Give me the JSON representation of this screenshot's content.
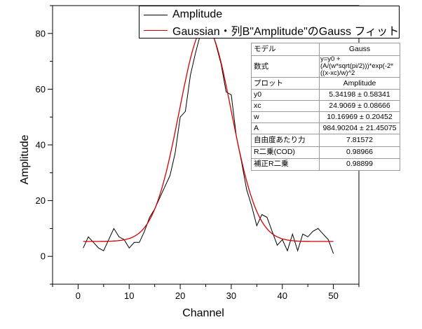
{
  "legend": {
    "entries": [
      {
        "label": "Amplitude",
        "color": "#000000"
      },
      {
        "label": "Gaussian・列B\"Amplitude\"のGauss フィット",
        "color": "#d40000"
      }
    ]
  },
  "fit_table": {
    "rows": [
      {
        "label": "モデル",
        "value": "Gauss"
      },
      {
        "label": "数式",
        "value": "y=y0 + (A/(w*sqrt(pi/2)))*exp(-2*((x-xc)/w)^2"
      },
      {
        "label": "プロット",
        "value": "Amplitude"
      },
      {
        "label": "y0",
        "value": "5.34198 ± 0.58341"
      },
      {
        "label": "xc",
        "value": "24.9069 ± 0.08666"
      },
      {
        "label": "w",
        "value": "10.16969 ± 0.20452"
      },
      {
        "label": "A",
        "value": "984.90204 ± 21.45075"
      },
      {
        "label": "自由度あたり力",
        "value": "7.81572"
      },
      {
        "label": "R二乗(COD)",
        "value": "0.98966"
      },
      {
        "label": "補正R二乗",
        "value": "0.98899"
      }
    ]
  },
  "chart_data": {
    "type": "line",
    "xlabel": "Channel",
    "ylabel": "Amplitude",
    "xlim": [
      -5,
      55
    ],
    "ylim": [
      -10,
      90
    ],
    "xticks": [
      0,
      10,
      20,
      30,
      40,
      50
    ],
    "yticks": [
      0,
      20,
      40,
      60,
      80
    ],
    "grid": false,
    "legend_position": "top-right",
    "series": [
      {
        "name": "Amplitude",
        "color": "#000000",
        "x": [
          1,
          2,
          3,
          4,
          5,
          6,
          7,
          8,
          9,
          10,
          11,
          12,
          13,
          14,
          15,
          16,
          17,
          18,
          19,
          20,
          21,
          22,
          23,
          24,
          25,
          26,
          27,
          28,
          29,
          30,
          31,
          32,
          33,
          34,
          35,
          36,
          37,
          38,
          39,
          40,
          41,
          42,
          43,
          44,
          45,
          46,
          47,
          48,
          49,
          50
        ],
        "values": [
          3,
          7,
          5,
          3,
          2,
          6,
          10,
          7,
          6,
          3,
          5,
          5,
          9,
          14,
          17,
          21,
          25,
          29,
          37,
          50,
          52,
          65,
          73,
          80,
          80,
          82,
          76,
          69,
          59,
          58,
          43,
          34,
          24,
          18,
          11,
          15,
          14,
          9,
          4,
          6,
          2,
          8,
          2,
          8,
          7,
          9,
          10,
          8,
          6,
          1
        ]
      },
      {
        "name": "Gaussian・列B\"Amplitude\"のGauss フィット",
        "color": "#d40000",
        "model": "gauss",
        "y0": 5.34198,
        "xc": 24.9069,
        "w": 10.16969,
        "A": 984.90204,
        "x_range": [
          1,
          50
        ]
      }
    ]
  }
}
